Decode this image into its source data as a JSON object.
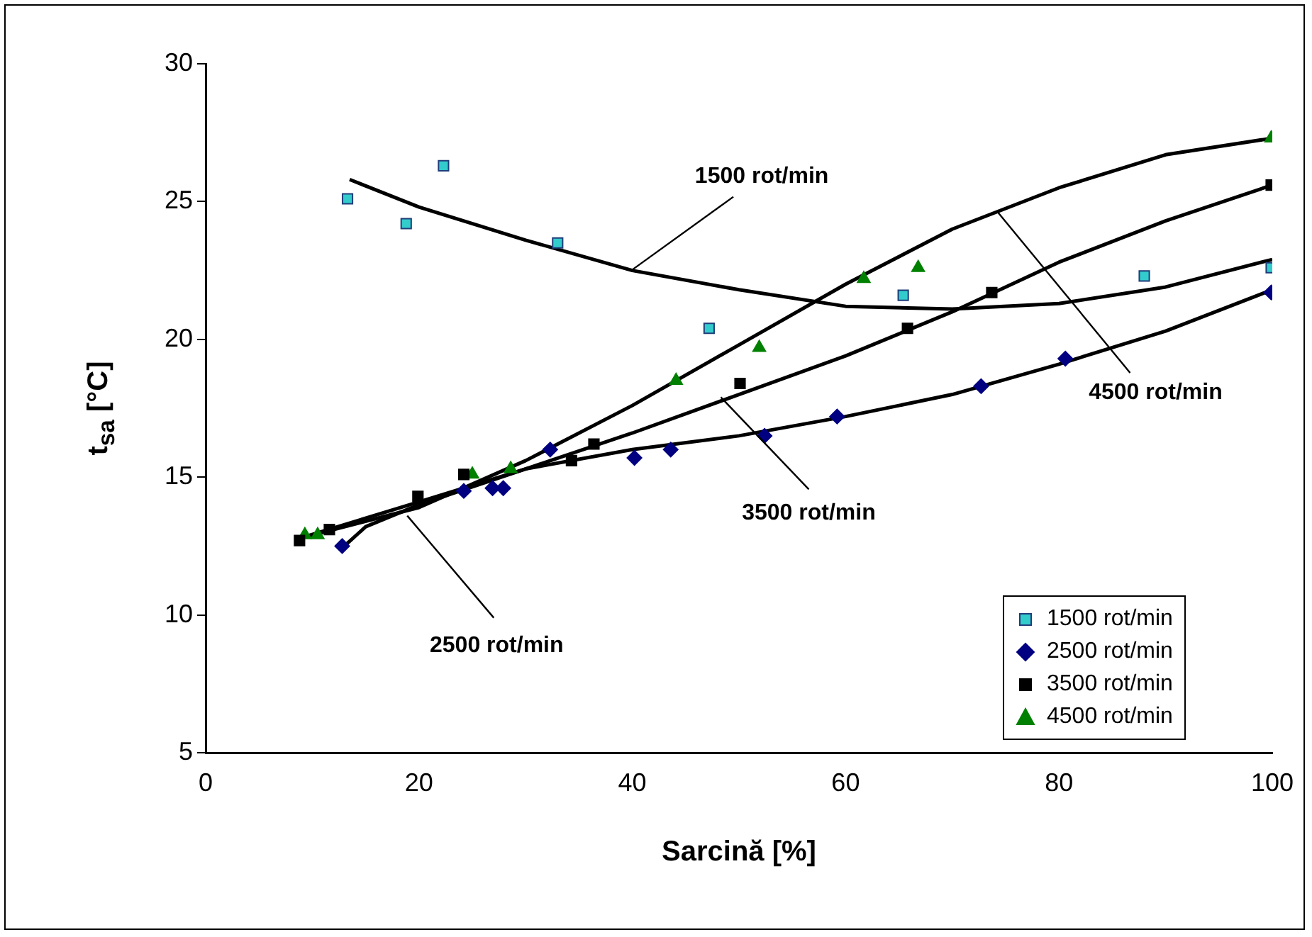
{
  "chart_data": {
    "type": "scatter",
    "xlabel": "Sarcină [%]",
    "ylabel": "t$_{sa}$ [°C]",
    "xlim": [
      0,
      100
    ],
    "xticks": [
      0,
      20,
      40,
      60,
      80,
      100
    ],
    "ylim": [
      5,
      30
    ],
    "yticks": [
      5,
      10,
      15,
      20,
      25,
      30
    ],
    "grid": false,
    "legend": "bottom right",
    "series": [
      {
        "name": "1500 rot/min",
        "color": "#33cccc",
        "marker": "square",
        "x": [
          13.3,
          18.8,
          22.3,
          33.0,
          47.2,
          65.4,
          88.0,
          99.9
        ],
        "values": [
          25.1,
          24.2,
          26.3,
          23.5,
          20.4,
          21.6,
          22.3,
          22.6
        ]
      },
      {
        "name": "2500 rot/min",
        "color": "#000080",
        "marker": "diamond",
        "x": [
          12.8,
          24.2,
          26.9,
          27.9,
          32.3,
          40.2,
          43.6,
          52.4,
          59.2,
          72.7,
          80.6,
          99.9
        ],
        "values": [
          12.5,
          14.5,
          14.6,
          14.6,
          16.0,
          15.7,
          16.0,
          16.5,
          17.2,
          18.3,
          19.3,
          21.7
        ]
      },
      {
        "name": "3500 rot/min",
        "color": "#000000",
        "marker": "square",
        "x": [
          8.8,
          11.6,
          19.9,
          24.2,
          34.3,
          36.4,
          50.1,
          65.8,
          73.7,
          99.9
        ],
        "values": [
          12.7,
          13.1,
          14.3,
          15.1,
          15.6,
          16.2,
          18.4,
          20.4,
          21.7,
          25.6
        ]
      },
      {
        "name": "4500 rot/min",
        "color": "#008000",
        "marker": "triangle",
        "x": [
          9.3,
          10.5,
          11.6,
          25.0,
          28.6,
          44.1,
          51.9,
          61.7,
          66.8,
          99.9
        ],
        "values": [
          12.9,
          12.9,
          null,
          15.1,
          15.3,
          18.5,
          19.7,
          22.2,
          22.6,
          27.3
        ]
      },
      {
        "type": "line",
        "color": "#000000",
        "marker": "none",
        "x": [
          13.5,
          20,
          30,
          40,
          50,
          60,
          70,
          80,
          90,
          100
        ],
        "values": [
          25.8,
          24.8,
          23.6,
          22.5,
          21.8,
          21.2,
          21.1,
          21.3,
          21.9,
          22.9
        ]
      },
      {
        "type": "line",
        "color": "#000000",
        "marker": "none",
        "x": [
          13,
          15,
          20,
          30,
          40,
          50,
          60,
          70,
          80,
          90,
          100
        ],
        "values": [
          12.5,
          13.2,
          14.0,
          15.3,
          16.0,
          16.5,
          17.2,
          18.0,
          19.1,
          20.3,
          21.8
        ]
      },
      {
        "type": "line",
        "color": "#000000",
        "marker": "none",
        "x": [
          9,
          20,
          30,
          40,
          50,
          60,
          70,
          80,
          90,
          100
        ],
        "values": [
          12.8,
          14.1,
          15.3,
          16.6,
          18.0,
          19.4,
          21.0,
          22.8,
          24.3,
          25.6
        ]
      },
      {
        "type": "line",
        "color": "#000000",
        "marker": "none",
        "x": [
          9,
          20,
          30,
          40,
          50,
          60,
          70,
          80,
          90,
          100
        ],
        "values": [
          12.8,
          13.9,
          15.6,
          17.6,
          19.8,
          22.0,
          24.0,
          25.5,
          26.7,
          27.3
        ]
      }
    ],
    "annotations": [
      {
        "text": "1500 rot/min",
        "x": 39.9,
        "y": 22.5
      },
      {
        "text": "3500 rot/min",
        "x": 48.3,
        "y": 17.9
      },
      {
        "text": "2500 rot/min",
        "x": 18.9,
        "y": 13.6
      },
      {
        "text": "4500 rot/min",
        "x": 74.3,
        "y": 24.6
      }
    ]
  }
}
